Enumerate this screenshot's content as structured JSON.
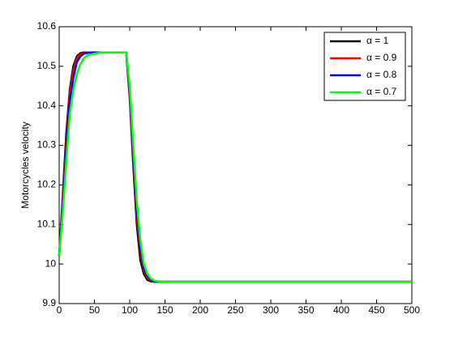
{
  "chart_data": {
    "type": "line",
    "y_label": "Motorcycles velocity",
    "x": [
      0,
      5,
      10,
      15,
      20,
      25,
      30,
      35,
      40,
      50,
      60,
      70,
      80,
      90,
      95,
      100,
      105,
      110,
      115,
      120,
      125,
      130,
      135,
      140,
      150,
      200,
      250,
      300,
      350,
      400,
      450,
      500
    ],
    "series": [
      {
        "name": "α = 1",
        "color": "#000000",
        "values": [
          10.02,
          10.17,
          10.33,
          10.44,
          10.5,
          10.525,
          10.533,
          10.535,
          10.535,
          10.535,
          10.535,
          10.535,
          10.535,
          10.535,
          10.535,
          10.42,
          10.25,
          10.1,
          10.01,
          9.975,
          9.96,
          9.956,
          9.955,
          9.955,
          9.955,
          9.955,
          9.955,
          9.955,
          9.955,
          9.955,
          9.955,
          9.955
        ]
      },
      {
        "name": "α = 0.9",
        "color": "#ff0000",
        "values": [
          10.02,
          10.16,
          10.31,
          10.43,
          10.49,
          10.52,
          10.53,
          10.534,
          10.535,
          10.535,
          10.535,
          10.535,
          10.535,
          10.535,
          10.535,
          10.43,
          10.27,
          10.12,
          10.03,
          9.985,
          9.965,
          9.958,
          9.955,
          9.955,
          9.955,
          9.955,
          9.955,
          9.955,
          9.955,
          9.955,
          9.955,
          9.955
        ]
      },
      {
        "name": "α = 0.8",
        "color": "#0000ff",
        "values": [
          10.02,
          10.15,
          10.29,
          10.41,
          10.47,
          10.51,
          10.525,
          10.532,
          10.534,
          10.535,
          10.535,
          10.535,
          10.535,
          10.535,
          10.535,
          10.44,
          10.28,
          10.14,
          10.04,
          9.99,
          9.97,
          9.96,
          9.956,
          9.955,
          9.955,
          9.955,
          9.955,
          9.955,
          9.955,
          9.955,
          9.955,
          9.955
        ]
      },
      {
        "name": "α = 0.7",
        "color": "#00ff00",
        "values": [
          10.02,
          10.13,
          10.26,
          10.38,
          10.44,
          10.48,
          10.505,
          10.52,
          10.528,
          10.532,
          10.535,
          10.535,
          10.535,
          10.535,
          10.535,
          10.45,
          10.3,
          10.16,
          10.06,
          10.0,
          9.975,
          9.963,
          9.958,
          9.956,
          9.955,
          9.955,
          9.955,
          9.955,
          9.955,
          9.955,
          9.955,
          9.955
        ]
      }
    ],
    "xlim": [
      0,
      500
    ],
    "xticks": [
      0,
      50,
      100,
      150,
      200,
      250,
      300,
      350,
      400,
      450,
      500
    ],
    "ylim": [
      9.9,
      10.6
    ],
    "yticks": [
      9.9,
      10,
      10.1,
      10.2,
      10.3,
      10.4,
      10.5,
      10.6
    ],
    "legend": "top-right"
  }
}
